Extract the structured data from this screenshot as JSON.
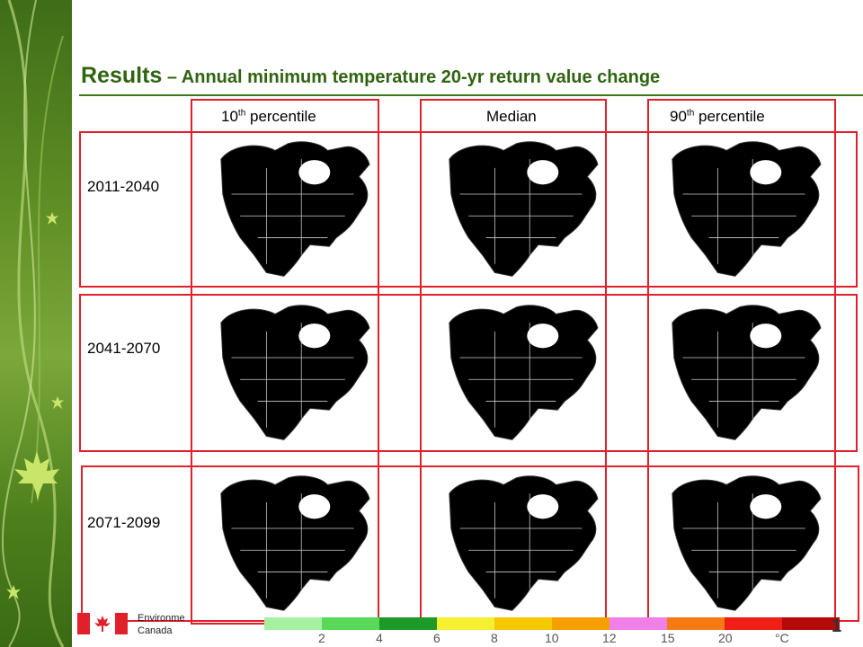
{
  "title": {
    "main": "Results",
    "sub": " – Annual minimum temperature 20-yr return value change"
  },
  "columns": [
    {
      "base": "10",
      "sup": "th",
      "rest": " percentile"
    },
    {
      "base": "Median",
      "sup": "",
      "rest": ""
    },
    {
      "base": "90",
      "sup": "th",
      "rest": " percentile"
    }
  ],
  "rows": [
    "2011-2040",
    "2041-2070",
    "2071-2099"
  ],
  "logo": {
    "line1": "Environme",
    "line2": "Canada"
  },
  "legend": {
    "colors": [
      "#a6f0a0",
      "#5ad858",
      "#1e9a28",
      "#f5f032",
      "#f5c800",
      "#f5a000",
      "#f080e8",
      "#f57a14",
      "#f01e14",
      "#b40a0a"
    ],
    "ticks": [
      "2",
      "4",
      "6",
      "8",
      "10",
      "12",
      "15",
      "20",
      "°C"
    ]
  },
  "maps": [
    [
      "#2da83a",
      "#f2e92a",
      "#f5a623",
      "#f080e8"
    ],
    [
      "#f5a623",
      "#f080e8",
      "#f57a14",
      "#f5e92a"
    ],
    [
      "#f57a14",
      "#f01e14",
      "#c80c0c",
      "#f5a623"
    ]
  ],
  "page_number": "1"
}
